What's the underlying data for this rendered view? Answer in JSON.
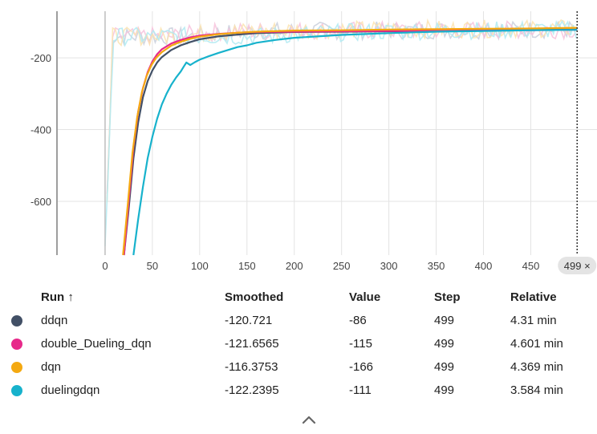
{
  "chart_data": {
    "type": "line",
    "title": "",
    "xlabel": "",
    "ylabel": "",
    "xlim": [
      -50,
      520
    ],
    "ylim": [
      -750,
      -70
    ],
    "x_ticks": [
      0,
      50,
      100,
      150,
      200,
      250,
      300,
      350,
      400,
      450
    ],
    "x_tick_labels": [
      "0",
      "50",
      "100",
      "150",
      "200",
      "250",
      "300",
      "350",
      "400",
      "450"
    ],
    "y_ticks": [
      -200,
      -400,
      -600
    ],
    "y_tick_labels": [
      "-200",
      "-400",
      "-600"
    ],
    "grid": true,
    "legend": "table-below",
    "series": [
      {
        "name": "ddqn",
        "color": "#425066",
        "smoothed": [
          [
            20,
            -750
          ],
          [
            25,
            -620
          ],
          [
            30,
            -480
          ],
          [
            35,
            -380
          ],
          [
            40,
            -310
          ],
          [
            45,
            -265
          ],
          [
            50,
            -235
          ],
          [
            55,
            -213
          ],
          [
            60,
            -198
          ],
          [
            70,
            -178
          ],
          [
            80,
            -165
          ],
          [
            90,
            -156
          ],
          [
            100,
            -148
          ],
          [
            120,
            -140
          ],
          [
            140,
            -135
          ],
          [
            160,
            -131
          ],
          [
            200,
            -128
          ],
          [
            250,
            -127
          ],
          [
            300,
            -126
          ],
          [
            350,
            -125
          ],
          [
            400,
            -123
          ],
          [
            450,
            -122
          ],
          [
            499,
            -121
          ]
        ]
      },
      {
        "name": "double_Dueling_dqn",
        "color": "#e7298a",
        "smoothed": [
          [
            20,
            -750
          ],
          [
            25,
            -600
          ],
          [
            30,
            -450
          ],
          [
            35,
            -350
          ],
          [
            40,
            -285
          ],
          [
            45,
            -240
          ],
          [
            50,
            -210
          ],
          [
            55,
            -190
          ],
          [
            60,
            -176
          ],
          [
            70,
            -160
          ],
          [
            80,
            -150
          ],
          [
            90,
            -143
          ],
          [
            100,
            -138
          ],
          [
            120,
            -133
          ],
          [
            140,
            -130
          ],
          [
            160,
            -128
          ],
          [
            200,
            -127
          ],
          [
            250,
            -126
          ],
          [
            300,
            -125
          ],
          [
            350,
            -125
          ],
          [
            400,
            -124
          ],
          [
            450,
            -123
          ],
          [
            499,
            -122
          ]
        ]
      },
      {
        "name": "dqn",
        "color": "#f4a911",
        "smoothed": [
          [
            19,
            -750
          ],
          [
            24,
            -610
          ],
          [
            29,
            -465
          ],
          [
            34,
            -365
          ],
          [
            39,
            -295
          ],
          [
            44,
            -250
          ],
          [
            49,
            -220
          ],
          [
            54,
            -200
          ],
          [
            60,
            -184
          ],
          [
            70,
            -166
          ],
          [
            80,
            -155
          ],
          [
            90,
            -147
          ],
          [
            100,
            -141
          ],
          [
            120,
            -134
          ],
          [
            140,
            -130
          ],
          [
            160,
            -127
          ],
          [
            200,
            -124
          ],
          [
            250,
            -123
          ],
          [
            300,
            -121
          ],
          [
            350,
            -120
          ],
          [
            400,
            -119
          ],
          [
            450,
            -118
          ],
          [
            499,
            -116
          ]
        ]
      },
      {
        "name": "duelingdqn",
        "color": "#17b2cc",
        "smoothed": [
          [
            30,
            -750
          ],
          [
            35,
            -650
          ],
          [
            40,
            -560
          ],
          [
            45,
            -480
          ],
          [
            50,
            -420
          ],
          [
            55,
            -370
          ],
          [
            60,
            -330
          ],
          [
            65,
            -300
          ],
          [
            70,
            -275
          ],
          [
            75,
            -255
          ],
          [
            80,
            -238
          ],
          [
            83,
            -225
          ],
          [
            86,
            -213
          ],
          [
            90,
            -220
          ],
          [
            95,
            -212
          ],
          [
            100,
            -205
          ],
          [
            110,
            -195
          ],
          [
            120,
            -186
          ],
          [
            130,
            -178
          ],
          [
            140,
            -170
          ],
          [
            150,
            -165
          ],
          [
            160,
            -158
          ],
          [
            180,
            -150
          ],
          [
            200,
            -144
          ],
          [
            250,
            -136
          ],
          [
            300,
            -131
          ],
          [
            350,
            -127
          ],
          [
            400,
            -125
          ],
          [
            450,
            -123
          ],
          [
            499,
            -122
          ]
        ]
      }
    ],
    "raw_color": "#b0eaf2",
    "hover_step": 499
  },
  "hover": {
    "label": "499 ×"
  },
  "table": {
    "headers": {
      "run": "Run ↑",
      "smoothed": "Smoothed",
      "value": "Value",
      "step": "Step",
      "relative": "Relative"
    },
    "rows": [
      {
        "color": "#425066",
        "run": "ddqn",
        "smoothed": "-120.721",
        "value": "-86",
        "step": "499",
        "relative": "4.31 min"
      },
      {
        "color": "#e7298a",
        "run": "double_Dueling_dqn",
        "smoothed": "-121.6565",
        "value": "-115",
        "step": "499",
        "relative": "4.601 min"
      },
      {
        "color": "#f4a911",
        "run": "dqn",
        "smoothed": "-116.3753",
        "value": "-166",
        "step": "499",
        "relative": "4.369 min"
      },
      {
        "color": "#17b2cc",
        "run": "duelingdqn",
        "smoothed": "-122.2395",
        "value": "-111",
        "step": "499",
        "relative": "3.584 min"
      }
    ]
  }
}
